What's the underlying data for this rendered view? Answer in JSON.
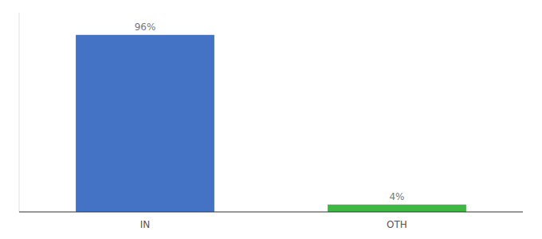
{
  "chart_data": {
    "type": "bar",
    "categories": [
      "IN",
      "OTH"
    ],
    "values": [
      96,
      4
    ],
    "colors": [
      "#4472c4",
      "#3cb843"
    ],
    "value_labels": [
      "96%",
      "4%"
    ],
    "data_labels": true,
    "ylim": [
      0,
      108
    ],
    "tick_labels": "x",
    "grid": false
  }
}
